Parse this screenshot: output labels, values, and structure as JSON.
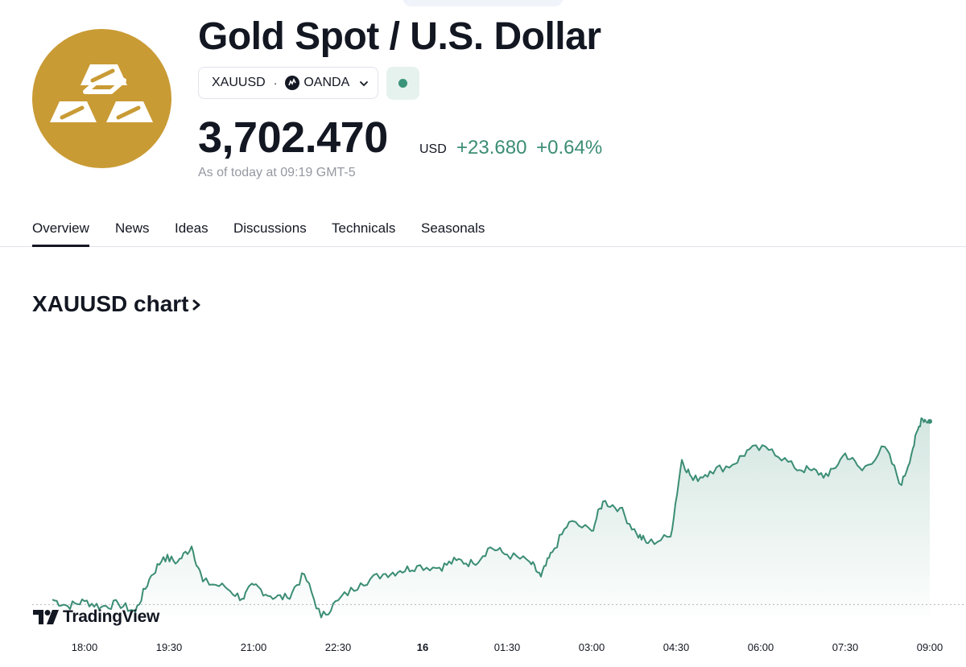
{
  "header": {
    "title": "Gold Spot / U.S. Dollar",
    "symbol": "XAUUSD",
    "separator": "·",
    "exchange": "OANDA",
    "price": "3,702.470",
    "currency": "USD",
    "change": "+23.680",
    "change_percent": "+0.64%",
    "as_of": "As of today at 09:19 GMT-5"
  },
  "tabs": [
    "Overview",
    "News",
    "Ideas",
    "Discussions",
    "Technicals",
    "Seasonals"
  ],
  "active_tab": "Overview",
  "chart_heading": "XAUUSD chart",
  "watermark": "TradingView",
  "colors": {
    "accent_green": "#3b8d74",
    "logo_gold": "#c99b35",
    "status_dot": "#3b9479"
  },
  "icons": [
    "gold-bars-icon",
    "oanda-icon",
    "chevron-down-icon",
    "chevron-right-icon",
    "tradingview-logo-icon"
  ],
  "chart_data": {
    "type": "area",
    "x_ticks": [
      "18:00",
      "19:30",
      "21:00",
      "22:30",
      "16",
      "01:30",
      "03:00",
      "04:30",
      "06:00",
      "07:30",
      "09:00"
    ],
    "baseline_previous_close": 3678.79,
    "ylim": [
      3674,
      3706
    ],
    "series": [
      {
        "x": [
          17.43,
          17.7,
          18.0,
          18.3,
          18.6,
          18.9,
          19.15,
          19.4,
          19.65,
          19.9,
          20.1,
          20.5,
          20.8,
          21.0,
          21.3,
          21.6,
          21.9,
          22.2,
          22.5,
          22.9,
          23.3,
          23.6,
          23.9,
          24.3,
          24.6,
          24.9,
          25.2,
          25.5,
          25.9,
          26.1,
          26.3,
          26.6,
          27.0,
          27.2,
          27.5,
          27.8,
          28.0,
          28.4,
          28.6,
          28.8,
          29.1,
          29.5,
          29.8,
          30.2,
          30.6,
          30.9,
          31.2,
          31.5,
          31.8,
          32.2,
          32.5,
          32.7,
          32.85,
          33.0
        ],
        "y": [
          3679.4,
          3678.6,
          3679.2,
          3678.5,
          3678.9,
          3677.9,
          3681.9,
          3684.6,
          3684.0,
          3685.9,
          3681.6,
          3680.9,
          3679.5,
          3681.2,
          3679.8,
          3679.6,
          3682.5,
          3677.2,
          3679.3,
          3681.4,
          3682.5,
          3682.9,
          3683.5,
          3683.3,
          3684.2,
          3683.8,
          3685.8,
          3684.9,
          3684.0,
          3682.2,
          3685.2,
          3688.9,
          3687.8,
          3691.4,
          3690.6,
          3687.4,
          3686.3,
          3687.1,
          3696.5,
          3694.0,
          3695.1,
          3695.9,
          3697.8,
          3697.8,
          3695.5,
          3695.2,
          3694.5,
          3697.3,
          3695.2,
          3698.1,
          3693.4,
          3697.9,
          3701.6,
          3701.2
        ]
      }
    ]
  }
}
